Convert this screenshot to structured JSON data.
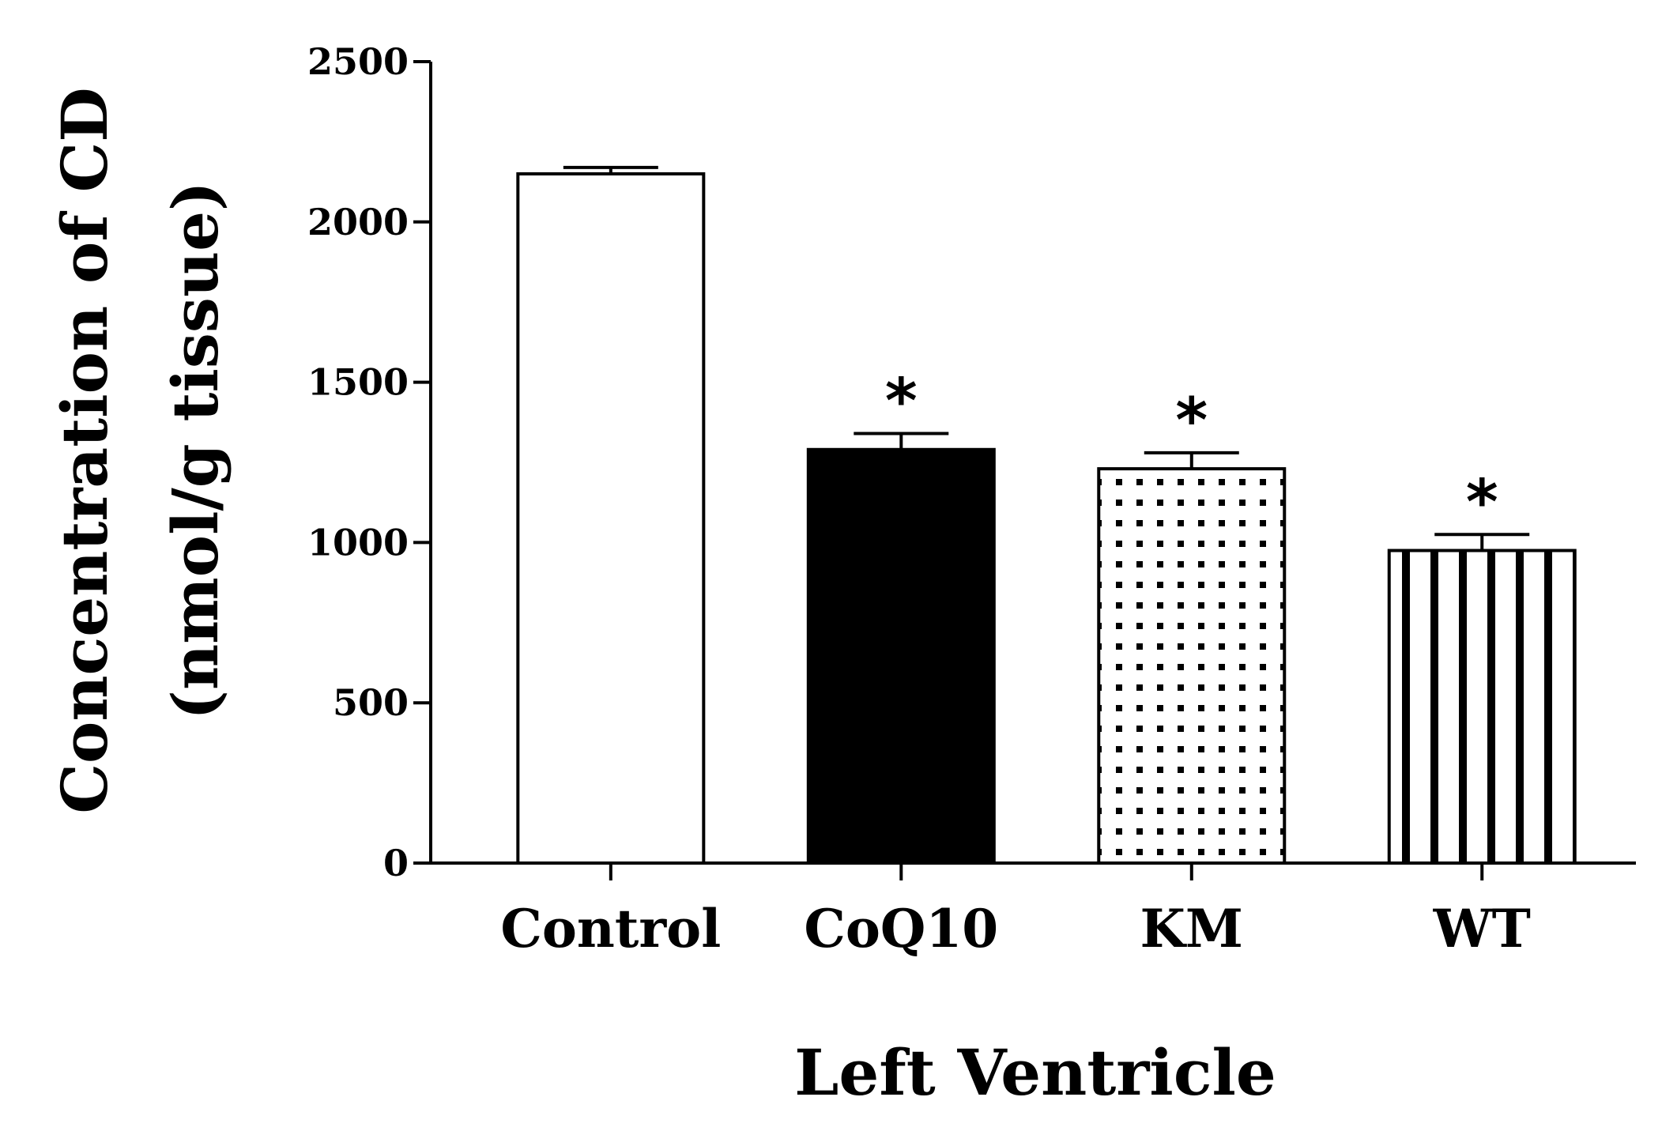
{
  "chart_data": {
    "type": "bar",
    "title": "",
    "xlabel": "Left Ventricle",
    "ylabel": [
      "Concentration of CD",
      "(nmol/g tissue)"
    ],
    "ylim": [
      0,
      2500
    ],
    "yticks": [
      0,
      500,
      1000,
      1500,
      2000,
      2500
    ],
    "grid": false,
    "legend": "none",
    "categories": [
      "Control",
      "CoQ10",
      "KM",
      "WT"
    ],
    "values": [
      2150,
      1290,
      1230,
      975
    ],
    "error": [
      20,
      50,
      50,
      50
    ],
    "significance": [
      "",
      "*",
      "*",
      "*"
    ],
    "fills": [
      "white",
      "black",
      "dots",
      "vertical-stripes"
    ],
    "colors": {
      "stroke": "#000000",
      "white": "#ffffff",
      "black": "#000000"
    }
  }
}
